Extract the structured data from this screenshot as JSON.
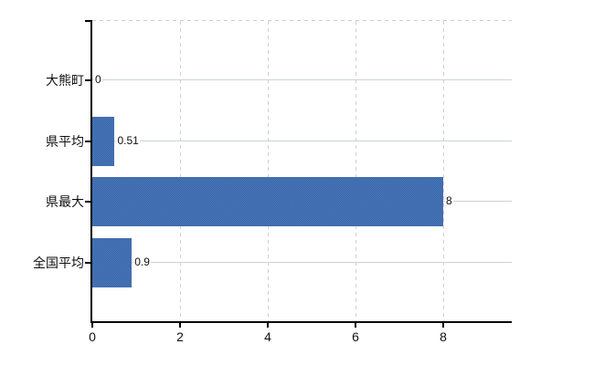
{
  "chart_data": {
    "type": "bar",
    "orientation": "horizontal",
    "title": "",
    "xlabel": "",
    "ylabel": "",
    "categories": [
      "大熊町",
      "県平均",
      "県最大",
      "全国平均"
    ],
    "values": [
      0,
      0.51,
      8,
      0.9
    ],
    "value_labels": [
      "0",
      "0.51",
      "8",
      "0.9"
    ],
    "x_ticks": [
      0,
      2,
      4,
      6,
      8
    ],
    "x_tick_labels": [
      "0",
      "2",
      "4",
      "6",
      "8"
    ],
    "xlim": [
      0,
      9.56
    ],
    "legend": "none",
    "grid": "horizontal solid lines at category centers, vertical dashed lines at ticks, dashed top border",
    "colors": {
      "bar": "#4171b4",
      "bar_dither_dark": "#37629e",
      "bar_dither_light": "#4b7bc2",
      "h_gridline": "#ccd4cc",
      "v_gridline_dashed": "#d2ced2",
      "top_border_dashed": "#cccccc",
      "axis": "#000000",
      "text": "#111111",
      "background": "#ffffff"
    }
  }
}
